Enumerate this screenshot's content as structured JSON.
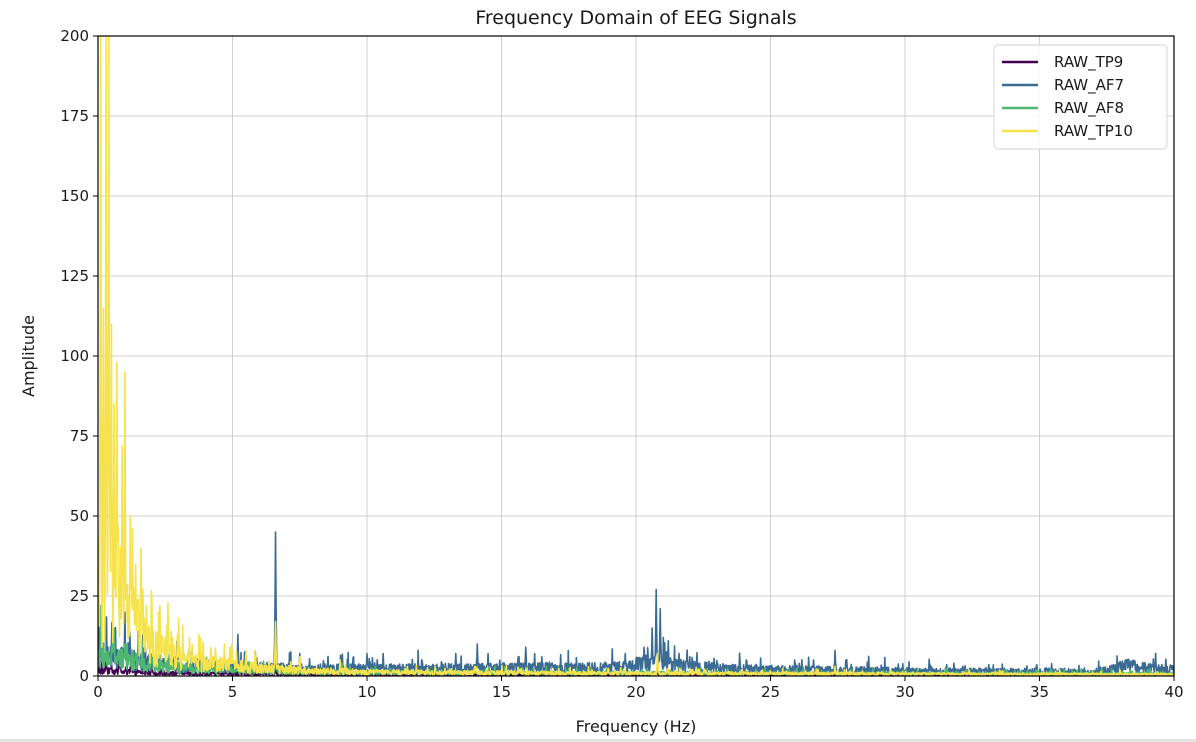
{
  "chart_data": {
    "type": "line",
    "title": "Frequency Domain of EEG Signals",
    "xlabel": "Frequency (Hz)",
    "ylabel": "Amplitude",
    "xlim": [
      0,
      40
    ],
    "ylim": [
      0,
      200
    ],
    "xticks": [
      0,
      5,
      10,
      15,
      20,
      25,
      30,
      35,
      40
    ],
    "yticks": [
      0,
      25,
      50,
      75,
      100,
      125,
      150,
      175,
      200
    ],
    "grid": true,
    "legend_position": "top-right",
    "series": [
      {
        "name": "RAW_TP9",
        "color": "#440154",
        "peaks": [
          [
            0.0,
            28
          ],
          [
            0.3,
            5
          ],
          [
            0.5,
            4
          ],
          [
            0.8,
            6
          ],
          [
            1.2,
            3
          ],
          [
            2.0,
            2.5
          ],
          [
            6.6,
            3
          ],
          [
            20.8,
            1.5
          ]
        ],
        "floor": [
          [
            0.0,
            2.0
          ],
          [
            2.0,
            1.2
          ],
          [
            5.0,
            0.8
          ],
          [
            10.0,
            0.5
          ],
          [
            20.0,
            0.4
          ],
          [
            30.0,
            0.3
          ],
          [
            40.0,
            0.3
          ]
        ]
      },
      {
        "name": "RAW_AF7",
        "color": "#3b6a93",
        "peaks": [
          [
            0.0,
            25
          ],
          [
            1.0,
            20
          ],
          [
            1.5,
            14
          ],
          [
            2.2,
            10
          ],
          [
            5.2,
            13
          ],
          [
            6.6,
            45
          ],
          [
            7.5,
            7
          ],
          [
            10.0,
            7
          ],
          [
            10.6,
            7
          ],
          [
            13.3,
            7
          ],
          [
            14.1,
            10
          ],
          [
            14.5,
            7
          ],
          [
            15.9,
            9
          ],
          [
            16.5,
            6
          ],
          [
            19.6,
            7
          ],
          [
            20.3,
            9
          ],
          [
            20.6,
            15
          ],
          [
            20.75,
            27
          ],
          [
            20.9,
            21
          ],
          [
            21.2,
            11
          ],
          [
            21.6,
            7
          ],
          [
            22.0,
            6
          ],
          [
            24.1,
            5
          ],
          [
            25.9,
            5
          ],
          [
            26.6,
            5
          ],
          [
            27.4,
            8
          ],
          [
            27.8,
            5
          ],
          [
            34.9,
            3.5
          ],
          [
            38.4,
            4.5
          ],
          [
            39.2,
            3.2
          ]
        ],
        "floor": [
          [
            0.0,
            8.0
          ],
          [
            2.0,
            5.0
          ],
          [
            5.0,
            3.5
          ],
          [
            7.0,
            3.0
          ],
          [
            10.0,
            2.8
          ],
          [
            14.0,
            3.0
          ],
          [
            19.0,
            3.2
          ],
          [
            20.5,
            5.0
          ],
          [
            22.0,
            3.5
          ],
          [
            24.0,
            2.6
          ],
          [
            26.0,
            2.4
          ],
          [
            28.0,
            2.2
          ],
          [
            30.0,
            2.0
          ],
          [
            33.0,
            1.8
          ],
          [
            36.0,
            1.8
          ],
          [
            37.0,
            1.2
          ],
          [
            38.3,
            4.0
          ],
          [
            39.2,
            3.0
          ],
          [
            40.0,
            2.5
          ]
        ]
      },
      {
        "name": "RAW_AF8",
        "color": "#4eb771",
        "peaks": [
          [
            0.1,
            22
          ],
          [
            0.6,
            15
          ],
          [
            1.0,
            10
          ],
          [
            1.5,
            12
          ],
          [
            2.0,
            7
          ],
          [
            6.6,
            8
          ],
          [
            20.8,
            4
          ]
        ],
        "floor": [
          [
            0.0,
            8.0
          ],
          [
            2.0,
            4.0
          ],
          [
            4.0,
            2.5
          ],
          [
            8.0,
            1.5
          ],
          [
            15.0,
            1.2
          ],
          [
            25.0,
            1.0
          ],
          [
            40.0,
            0.8
          ]
        ]
      },
      {
        "name": "RAW_TP10",
        "color": "#f5e24d",
        "peaks": [
          [
            0.1,
            200
          ],
          [
            0.2,
            115
          ],
          [
            0.3,
            200
          ],
          [
            0.4,
            200
          ],
          [
            0.5,
            110
          ],
          [
            0.6,
            85
          ],
          [
            0.7,
            98
          ],
          [
            0.9,
            72
          ],
          [
            1.0,
            95
          ],
          [
            1.2,
            50
          ],
          [
            1.4,
            35
          ],
          [
            1.6,
            40
          ],
          [
            1.8,
            22
          ],
          [
            2.0,
            25
          ],
          [
            2.3,
            22
          ],
          [
            2.6,
            23
          ],
          [
            3.0,
            18
          ],
          [
            3.4,
            12
          ],
          [
            3.8,
            12
          ],
          [
            4.2,
            9
          ],
          [
            4.7,
            10
          ],
          [
            5.5,
            8
          ],
          [
            6.6,
            17
          ],
          [
            7.5,
            6
          ],
          [
            9.0,
            5
          ],
          [
            11.5,
            3
          ],
          [
            14.0,
            3
          ],
          [
            20.8,
            7
          ],
          [
            27.4,
            3
          ]
        ],
        "floor": [
          [
            0.0,
            20.0
          ],
          [
            0.5,
            40.0
          ],
          [
            1.0,
            25.0
          ],
          [
            2.0,
            12.0
          ],
          [
            3.0,
            7.0
          ],
          [
            4.0,
            5.0
          ],
          [
            6.0,
            3.0
          ],
          [
            8.0,
            2.0
          ],
          [
            10.0,
            1.5
          ],
          [
            15.0,
            1.2
          ],
          [
            20.0,
            1.0
          ],
          [
            30.0,
            0.8
          ],
          [
            40.0,
            0.6
          ]
        ]
      }
    ]
  }
}
